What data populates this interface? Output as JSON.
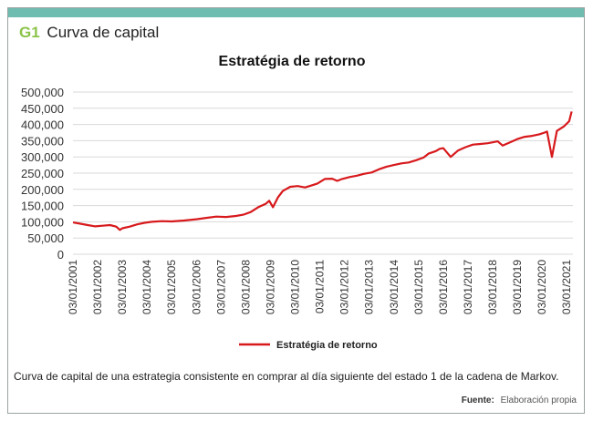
{
  "header": {
    "tag": "G1",
    "title": "Curva de capital"
  },
  "colors": {
    "accent_bar": "#6fbcb0",
    "tag": "#8bc34a",
    "line": "#d7191c",
    "grid": "#d9d9d9"
  },
  "chart_data": {
    "type": "line",
    "title": "Estratégia de retorno",
    "xlabel": "",
    "ylabel": "",
    "ylim": [
      0,
      500000
    ],
    "yticks": [
      0,
      50000,
      100000,
      150000,
      200000,
      250000,
      300000,
      350000,
      400000,
      450000,
      500000
    ],
    "ytick_labels": [
      "0",
      "50,000",
      "100,000",
      "150,000",
      "200,000",
      "250,000",
      "300,000",
      "350,000",
      "400,000",
      "450,000",
      "500,000"
    ],
    "xlim": [
      2001.0,
      2021.25
    ],
    "xtick_labels": [
      "03/01/2001",
      "03/01/2002",
      "03/01/2003",
      "03/01/2004",
      "03/01/2005",
      "03/01/2006",
      "03/01/2007",
      "03/01/2008",
      "03/01/2009",
      "03/01/2010",
      "03/01/2011",
      "03/01/2012",
      "03/01/2013",
      "03/01/2014",
      "03/01/2015",
      "03/01/2016",
      "03/01/2017",
      "03/01/2018",
      "03/01/2019",
      "03/01/2020",
      "03/01/2021"
    ],
    "grid": true,
    "legend_position": "bottom",
    "series": [
      {
        "name": "Estratégia de retorno",
        "color": "#d7191c",
        "x": [
          2001.0,
          2001.3,
          2001.6,
          2001.9,
          2002.2,
          2002.5,
          2002.75,
          2002.9,
          2003.0,
          2003.3,
          2003.6,
          2003.9,
          2004.2,
          2004.6,
          2005.0,
          2005.5,
          2006.0,
          2006.4,
          2006.8,
          2007.2,
          2007.6,
          2007.9,
          2008.2,
          2008.5,
          2008.8,
          2008.95,
          2009.1,
          2009.3,
          2009.5,
          2009.8,
          2010.1,
          2010.4,
          2010.7,
          2010.9,
          2011.2,
          2011.5,
          2011.7,
          2011.9,
          2012.2,
          2012.5,
          2012.8,
          2013.1,
          2013.4,
          2013.7,
          2014.0,
          2014.3,
          2014.6,
          2014.9,
          2015.2,
          2015.4,
          2015.7,
          2015.85,
          2016.0,
          2016.3,
          2016.6,
          2016.9,
          2017.2,
          2017.5,
          2017.8,
          2018.0,
          2018.2,
          2018.4,
          2018.7,
          2019.0,
          2019.3,
          2019.6,
          2019.9,
          2020.1,
          2020.2,
          2020.4,
          2020.6,
          2020.9,
          2021.1,
          2021.2
        ],
        "values": [
          98000,
          94000,
          90000,
          86000,
          88000,
          90000,
          85000,
          75000,
          80000,
          85000,
          92000,
          97000,
          100000,
          102000,
          101000,
          104000,
          108000,
          112000,
          116000,
          115000,
          118000,
          122000,
          130000,
          145000,
          155000,
          165000,
          145000,
          175000,
          195000,
          208000,
          210000,
          206000,
          213000,
          218000,
          232000,
          233000,
          226000,
          232000,
          238000,
          242000,
          248000,
          252000,
          262000,
          270000,
          275000,
          280000,
          283000,
          290000,
          298000,
          310000,
          318000,
          325000,
          327000,
          300000,
          320000,
          330000,
          338000,
          340000,
          342000,
          345000,
          348000,
          335000,
          345000,
          355000,
          362000,
          365000,
          370000,
          375000,
          378000,
          300000,
          380000,
          395000,
          410000,
          440000
        ]
      }
    ],
    "caption": "Curva de capital de una estrategia consistente en comprar al día siguiente del estado 1 de la cadena de Markov."
  },
  "source": {
    "label": "Fuente:",
    "value": "Elaboración propia"
  }
}
